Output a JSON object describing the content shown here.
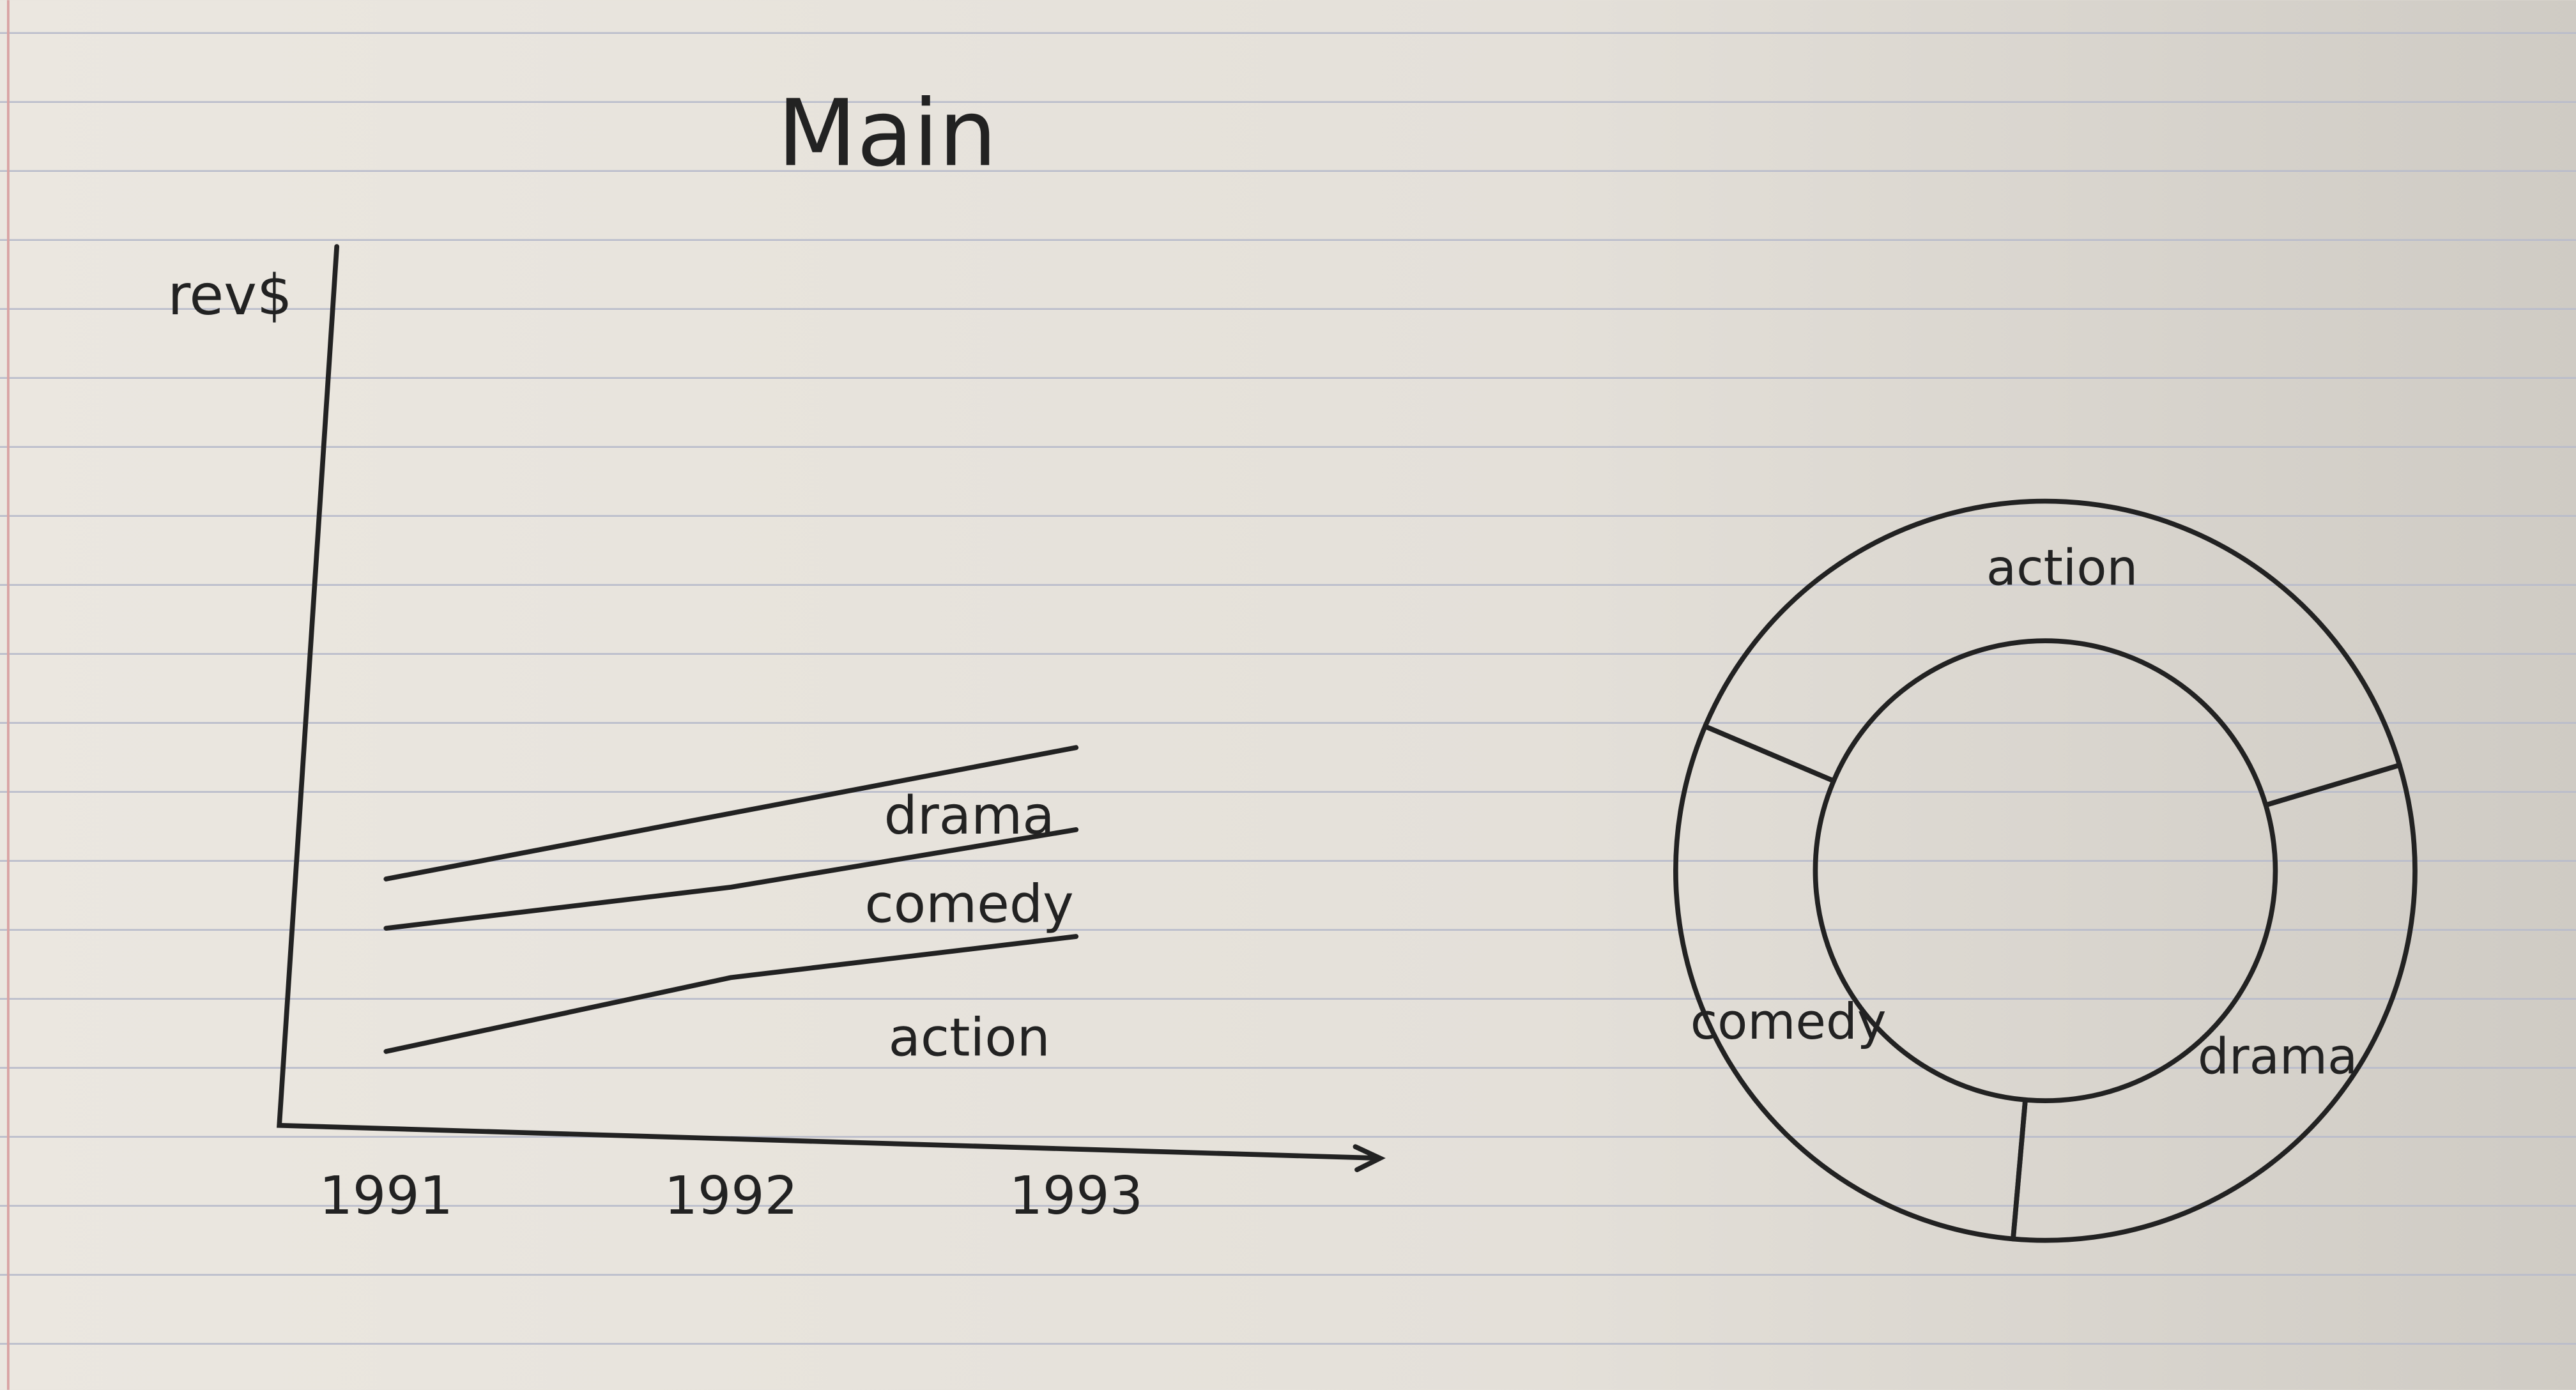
{
  "chart_data": [
    {
      "type": "area",
      "stacked": true,
      "title": "Main",
      "y_label": "rev$",
      "categories": [
        "1991",
        "1992",
        "1993"
      ],
      "series": [
        {
          "name": "action",
          "color": "#222222",
          "values": [
            45,
            90,
            115
          ]
        },
        {
          "name": "comedy",
          "color": "#222222",
          "values": [
            75,
            55,
            65
          ]
        },
        {
          "name": "drama",
          "color": "#222222",
          "values": [
            30,
            45,
            50
          ]
        }
      ]
    },
    {
      "type": "donut",
      "color": "#222222",
      "categories": [
        "action",
        "drama",
        "comedy"
      ],
      "values": [
        39,
        31,
        30
      ]
    }
  ]
}
